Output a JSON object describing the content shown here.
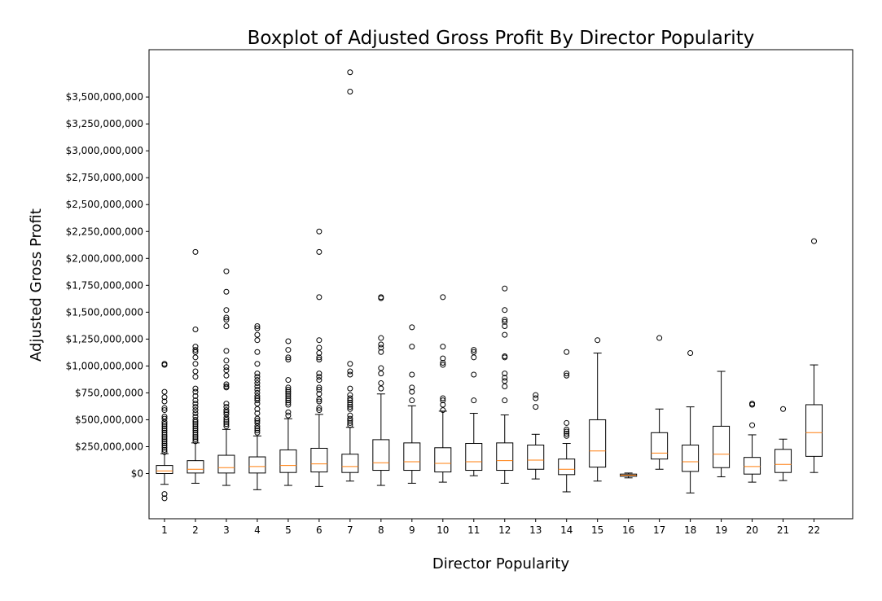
{
  "chart_data": {
    "type": "boxplot",
    "title": "Boxplot of Adjusted Gross Profit By Director Popularity",
    "xlabel": "Director Popularity",
    "ylabel": "Adjusted Gross Profit",
    "ylim": [
      -420000000,
      3940000000
    ],
    "grid": false,
    "colors": {
      "box": "#000000",
      "median": "#ff7f0e",
      "frame": "#000000"
    },
    "y_ticks": [
      {
        "value": 0,
        "label": "$0"
      },
      {
        "value": 250000000,
        "label": "$250,000,000"
      },
      {
        "value": 500000000,
        "label": "$500,000,000"
      },
      {
        "value": 750000000,
        "label": "$750,000,000"
      },
      {
        "value": 1000000000,
        "label": "$1,000,000,000"
      },
      {
        "value": 1250000000,
        "label": "$1,250,000,000"
      },
      {
        "value": 1500000000,
        "label": "$1,500,000,000"
      },
      {
        "value": 1750000000,
        "label": "$1,750,000,000"
      },
      {
        "value": 2000000000,
        "label": "$2,000,000,000"
      },
      {
        "value": 2250000000,
        "label": "$2,250,000,000"
      },
      {
        "value": 2500000000,
        "label": "$2,500,000,000"
      },
      {
        "value": 2750000000,
        "label": "$2,750,000,000"
      },
      {
        "value": 3000000000,
        "label": "$3,000,000,000"
      },
      {
        "value": 3250000000,
        "label": "$3,250,000,000"
      },
      {
        "value": 3500000000,
        "label": "$3,500,000,000"
      }
    ],
    "categories": [
      "1",
      "2",
      "3",
      "4",
      "5",
      "6",
      "7",
      "8",
      "9",
      "10",
      "11",
      "12",
      "13",
      "14",
      "15",
      "16",
      "17",
      "18",
      "19",
      "20",
      "21",
      "22"
    ],
    "boxes": [
      {
        "whislo": -100000000,
        "q1": 0,
        "med": 25000000,
        "q3": 75000000,
        "whishi": 185000000,
        "fliers": [
          1020000000,
          1010000000,
          760000000,
          710000000,
          670000000,
          610000000,
          590000000,
          530000000,
          510000000,
          480000000,
          460000000,
          440000000,
          420000000,
          400000000,
          380000000,
          360000000,
          340000000,
          320000000,
          300000000,
          280000000,
          260000000,
          240000000,
          220000000,
          200000000,
          -190000000,
          -230000000
        ]
      },
      {
        "whislo": -90000000,
        "q1": 5000000,
        "med": 40000000,
        "q3": 120000000,
        "whishi": 285000000,
        "fliers": [
          2060000000,
          1340000000,
          1180000000,
          1150000000,
          1130000000,
          1080000000,
          1020000000,
          950000000,
          900000000,
          790000000,
          760000000,
          720000000,
          680000000,
          650000000,
          620000000,
          590000000,
          560000000,
          530000000,
          500000000,
          480000000,
          460000000,
          440000000,
          420000000,
          400000000,
          380000000,
          360000000,
          340000000,
          320000000,
          300000000
        ]
      },
      {
        "whislo": -110000000,
        "q1": 5000000,
        "med": 55000000,
        "q3": 170000000,
        "whishi": 410000000,
        "fliers": [
          1880000000,
          1690000000,
          1520000000,
          1450000000,
          1430000000,
          1370000000,
          1140000000,
          1050000000,
          990000000,
          960000000,
          910000000,
          830000000,
          810000000,
          800000000,
          650000000,
          620000000,
          590000000,
          570000000,
          550000000,
          520000000,
          500000000,
          480000000,
          460000000,
          440000000
        ]
      },
      {
        "whislo": -150000000,
        "q1": 5000000,
        "med": 65000000,
        "q3": 155000000,
        "whishi": 350000000,
        "fliers": [
          1370000000,
          1350000000,
          1290000000,
          1240000000,
          1130000000,
          1020000000,
          930000000,
          900000000,
          870000000,
          840000000,
          810000000,
          780000000,
          750000000,
          720000000,
          700000000,
          680000000,
          650000000,
          600000000,
          560000000,
          510000000,
          490000000,
          470000000,
          440000000,
          420000000,
          400000000,
          380000000
        ]
      },
      {
        "whislo": -110000000,
        "q1": 10000000,
        "med": 75000000,
        "q3": 220000000,
        "whishi": 510000000,
        "fliers": [
          1230000000,
          1150000000,
          1080000000,
          1060000000,
          870000000,
          800000000,
          780000000,
          760000000,
          740000000,
          720000000,
          700000000,
          680000000,
          660000000,
          640000000,
          570000000,
          540000000
        ]
      },
      {
        "whislo": -120000000,
        "q1": 15000000,
        "med": 90000000,
        "q3": 235000000,
        "whishi": 550000000,
        "fliers": [
          2250000000,
          2060000000,
          1640000000,
          1240000000,
          1170000000,
          1120000000,
          1080000000,
          1060000000,
          930000000,
          900000000,
          870000000,
          800000000,
          780000000,
          740000000,
          690000000,
          670000000,
          610000000,
          590000000
        ]
      },
      {
        "whislo": -70000000,
        "q1": 10000000,
        "med": 65000000,
        "q3": 180000000,
        "whishi": 430000000,
        "fliers": [
          3730000000,
          3550000000,
          1020000000,
          950000000,
          920000000,
          790000000,
          730000000,
          700000000,
          680000000,
          660000000,
          640000000,
          620000000,
          600000000,
          540000000,
          510000000,
          490000000,
          470000000,
          450000000
        ]
      },
      {
        "whislo": -110000000,
        "q1": 30000000,
        "med": 100000000,
        "q3": 315000000,
        "whishi": 740000000,
        "fliers": [
          1640000000,
          1630000000,
          1260000000,
          1200000000,
          1170000000,
          1130000000,
          980000000,
          930000000,
          840000000,
          790000000
        ]
      },
      {
        "whislo": -90000000,
        "q1": 30000000,
        "med": 110000000,
        "q3": 285000000,
        "whishi": 630000000,
        "fliers": [
          1360000000,
          1180000000,
          920000000,
          800000000,
          760000000,
          680000000
        ]
      },
      {
        "whislo": -80000000,
        "q1": 15000000,
        "med": 95000000,
        "q3": 240000000,
        "whishi": 580000000,
        "fliers": [
          1640000000,
          1180000000,
          1070000000,
          1030000000,
          1010000000,
          700000000,
          680000000,
          640000000,
          590000000
        ]
      },
      {
        "whislo": -20000000,
        "q1": 30000000,
        "med": 110000000,
        "q3": 280000000,
        "whishi": 560000000,
        "fliers": [
          1150000000,
          1130000000,
          1080000000,
          920000000,
          680000000
        ]
      },
      {
        "whislo": -90000000,
        "q1": 30000000,
        "med": 120000000,
        "q3": 285000000,
        "whishi": 545000000,
        "fliers": [
          1720000000,
          1520000000,
          1430000000,
          1410000000,
          1370000000,
          1290000000,
          1090000000,
          1080000000,
          930000000,
          890000000,
          860000000,
          810000000,
          680000000
        ]
      },
      {
        "whislo": -50000000,
        "q1": 40000000,
        "med": 125000000,
        "q3": 265000000,
        "whishi": 365000000,
        "fliers": [
          730000000,
          700000000,
          620000000
        ]
      },
      {
        "whislo": -170000000,
        "q1": -10000000,
        "med": 40000000,
        "q3": 135000000,
        "whishi": 280000000,
        "fliers": [
          1130000000,
          930000000,
          910000000,
          470000000,
          410000000,
          390000000,
          370000000,
          350000000
        ]
      },
      {
        "whislo": -70000000,
        "q1": 60000000,
        "med": 210000000,
        "q3": 500000000,
        "whishi": 1120000000,
        "fliers": [
          1240000000
        ]
      },
      {
        "whislo": -40000000,
        "q1": -25000000,
        "med": -15000000,
        "q3": -5000000,
        "whishi": 5000000,
        "fliers": []
      },
      {
        "whislo": 40000000,
        "q1": 135000000,
        "med": 190000000,
        "q3": 380000000,
        "whishi": 600000000,
        "fliers": [
          1260000000
        ]
      },
      {
        "whislo": -180000000,
        "q1": 20000000,
        "med": 110000000,
        "q3": 265000000,
        "whishi": 620000000,
        "fliers": [
          1120000000
        ]
      },
      {
        "whislo": -30000000,
        "q1": 55000000,
        "med": 180000000,
        "q3": 440000000,
        "whishi": 950000000,
        "fliers": []
      },
      {
        "whislo": -80000000,
        "q1": -5000000,
        "med": 65000000,
        "q3": 150000000,
        "whishi": 360000000,
        "fliers": [
          650000000,
          640000000,
          450000000
        ]
      },
      {
        "whislo": -65000000,
        "q1": 10000000,
        "med": 85000000,
        "q3": 225000000,
        "whishi": 320000000,
        "fliers": [
          600000000
        ]
      },
      {
        "whislo": 10000000,
        "q1": 160000000,
        "med": 380000000,
        "q3": 640000000,
        "whishi": 1010000000,
        "fliers": [
          2160000000
        ]
      }
    ]
  }
}
